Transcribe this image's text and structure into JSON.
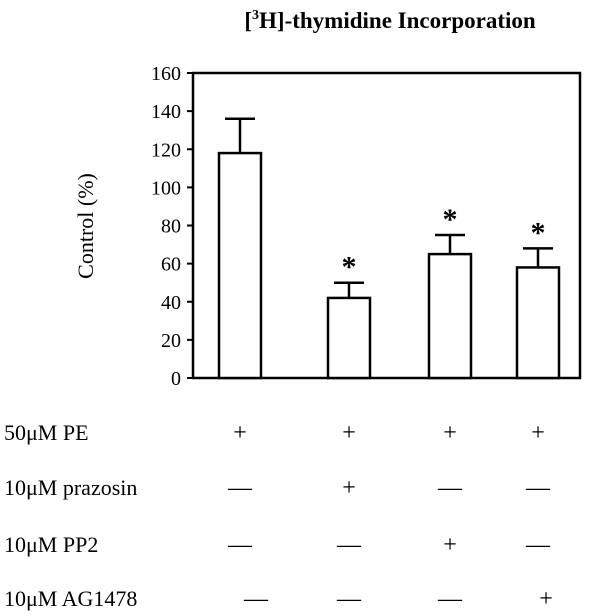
{
  "chart_data": {
    "type": "bar",
    "title": "-thymidine Incorporation",
    "title_prefix": "[",
    "title_superscript": "3",
    "title_element": "H]",
    "ylabel": "Control (%)",
    "xlabel": "",
    "ylim": [
      0,
      160
    ],
    "yticks": [
      0,
      20,
      40,
      60,
      80,
      100,
      120,
      140,
      160
    ],
    "categories": [
      "PE",
      "PE + prazosin",
      "PE + PP2",
      "PE + AG1478"
    ],
    "values": [
      118,
      42,
      65,
      58
    ],
    "errors": [
      18,
      8,
      10,
      10
    ],
    "significance": [
      "",
      "*",
      "*",
      "*"
    ],
    "bar_color": "#ffffff",
    "edge_color": "#000000",
    "grid": false
  },
  "treatments": [
    {
      "label": "50μM PE",
      "marks": [
        "+",
        "+",
        "+",
        "+"
      ]
    },
    {
      "label": "10μM prazosin",
      "marks": [
        "—",
        "+",
        "—",
        "—"
      ]
    },
    {
      "label": "10μM PP2",
      "marks": [
        "—",
        "—",
        "+",
        "—"
      ]
    },
    {
      "label": "10μM AG1478",
      "marks": [
        "—",
        "—",
        "—",
        "+"
      ]
    }
  ]
}
